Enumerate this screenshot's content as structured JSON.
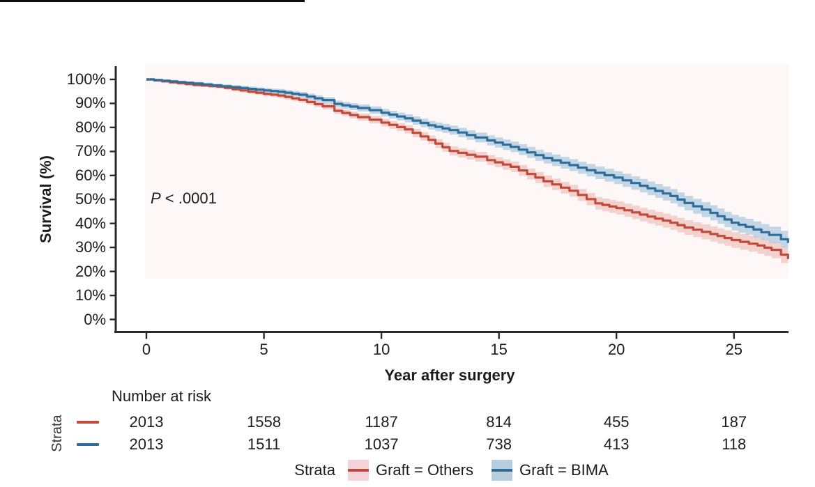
{
  "chart_data": {
    "type": "line",
    "subtype": "kaplan-meier-survival-with-confidence-bands",
    "title": "",
    "xlabel": "Year after surgery",
    "ylabel": "Survival (%)",
    "annotation_italic": "P",
    "annotation_rest": " < .0001",
    "annotation_full": "P < .0001",
    "xlim": [
      0,
      27.3
    ],
    "ylim": [
      0,
      100
    ],
    "grid": false,
    "legend_position": "bottom",
    "x_ticks": [
      {
        "year": 0,
        "label": "0"
      },
      {
        "year": 5,
        "label": "5"
      },
      {
        "year": 10,
        "label": "10"
      },
      {
        "year": 15,
        "label": "15"
      },
      {
        "year": 20,
        "label": "20"
      },
      {
        "year": 25,
        "label": "25"
      }
    ],
    "y_ticks": [
      {
        "pct": 0,
        "label": "0%"
      },
      {
        "pct": 10,
        "label": "10%"
      },
      {
        "pct": 20,
        "label": "20%"
      },
      {
        "pct": 30,
        "label": "30%"
      },
      {
        "pct": 40,
        "label": "40%"
      },
      {
        "pct": 50,
        "label": "50%"
      },
      {
        "pct": 60,
        "label": "60%"
      },
      {
        "pct": 70,
        "label": "70%"
      },
      {
        "pct": 80,
        "label": "80%"
      },
      {
        "pct": 90,
        "label": "90%"
      },
      {
        "pct": 100,
        "label": "100%"
      }
    ],
    "band_halfwidth_pct": [
      0.45,
      0.113
    ],
    "series": [
      {
        "name": "Graft = Others",
        "line_color": "#c04a3c",
        "band_color": "#f1cbc5",
        "points": [
          [
            0,
            100
          ],
          [
            1,
            98.8
          ],
          [
            2,
            97.7
          ],
          [
            3,
            97.0
          ],
          [
            4,
            95.4
          ],
          [
            5,
            94.0
          ],
          [
            5.6,
            93.3
          ],
          [
            6.5,
            91.5
          ],
          [
            7.5,
            88.8
          ],
          [
            8,
            86.9
          ],
          [
            9,
            84.3
          ],
          [
            9.5,
            83.2
          ],
          [
            10,
            82.0
          ],
          [
            11,
            79.2
          ],
          [
            12,
            74.8
          ],
          [
            12.9,
            70.2
          ],
          [
            14,
            67.8
          ],
          [
            14.5,
            66.4
          ],
          [
            15.5,
            63.6
          ],
          [
            16.9,
            57.6
          ],
          [
            18,
            53.6
          ],
          [
            19.1,
            48.4
          ],
          [
            20,
            46.4
          ],
          [
            21,
            43.7
          ],
          [
            22.3,
            40.3
          ],
          [
            22.9,
            38.3
          ],
          [
            24,
            35.6
          ],
          [
            24.9,
            33.1
          ],
          [
            26,
            30.8
          ],
          [
            26.6,
            29.0
          ],
          [
            27,
            27.0
          ],
          [
            27.3,
            25.2
          ]
        ]
      },
      {
        "name": "Graft = BIMA",
        "line_color": "#2f6e9a",
        "band_color": "#b7d0e2",
        "points": [
          [
            0,
            100
          ],
          [
            1,
            99.2
          ],
          [
            2,
            98.3
          ],
          [
            2.8,
            97.5
          ],
          [
            4,
            96.4
          ],
          [
            5,
            95.4
          ],
          [
            5.6,
            94.9
          ],
          [
            6.5,
            93.6
          ],
          [
            7.5,
            91.4
          ],
          [
            8,
            89.8
          ],
          [
            9,
            88.1
          ],
          [
            9.5,
            87.2
          ],
          [
            10,
            86.1
          ],
          [
            11,
            83.8
          ],
          [
            12,
            80.9
          ],
          [
            12.9,
            78.9
          ],
          [
            14,
            75.8
          ],
          [
            14.5,
            74.6
          ],
          [
            15.5,
            71.9
          ],
          [
            16.9,
            67.3
          ],
          [
            18,
            64.3
          ],
          [
            19.1,
            61.1
          ],
          [
            19.9,
            59.1
          ],
          [
            21,
            55.7
          ],
          [
            22.3,
            51.4
          ],
          [
            22.9,
            48.5
          ],
          [
            24,
            44.4
          ],
          [
            24.9,
            40.3
          ],
          [
            25.5,
            38.6
          ],
          [
            26.5,
            35.2
          ],
          [
            27,
            33.4
          ],
          [
            27.3,
            31.9
          ]
        ]
      }
    ]
  },
  "risk_table": {
    "title": "Number at risk",
    "strata_axis_label": "Strata",
    "column_years": [
      0,
      5,
      10,
      15,
      20,
      25
    ],
    "rows": [
      {
        "stratum": "Graft = Others",
        "color": "#c04a3c",
        "values": [
          "2013",
          "1558",
          "1187",
          "814",
          "455",
          "187"
        ]
      },
      {
        "stratum": "Graft = BIMA",
        "color": "#2f6e9a",
        "values": [
          "2013",
          "1511",
          "1037",
          "738",
          "413",
          "118"
        ]
      }
    ]
  },
  "legend": {
    "title": "Strata",
    "items": [
      {
        "label": "Graft = Others",
        "line_color": "#c04a3c",
        "box_color": "#f6d3da"
      },
      {
        "label": "Graft = BIMA",
        "line_color": "#2f6e9a",
        "box_color": "#b9cedd"
      }
    ]
  },
  "colors": {
    "axis": "#2b2b2b",
    "text": "#1c1c1c",
    "panel_tint": "#fdf7f8",
    "top_bar": "#0d0d0d"
  }
}
